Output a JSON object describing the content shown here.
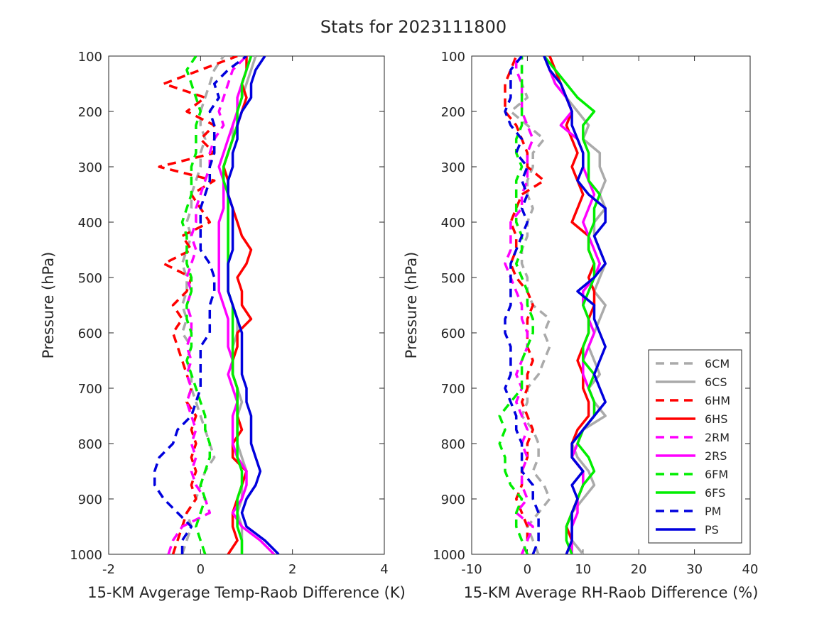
{
  "figure_title": "Stats for 2023111800",
  "chart_data": [
    {
      "type": "line",
      "xlabel": "15-KM Avgerage Temp-Raob Difference (K)",
      "ylabel": "Pressure (hPa)",
      "xlim": [
        -2,
        4
      ],
      "ylim": [
        100,
        1000
      ],
      "y_reversed": true,
      "xticks": [
        "-2",
        "0",
        "2",
        "4"
      ],
      "yticks": [
        "100",
        "200",
        "300",
        "400",
        "500",
        "600",
        "700",
        "800",
        "900",
        "1000"
      ],
      "pressure": [
        1000,
        975,
        950,
        925,
        900,
        875,
        850,
        825,
        800,
        775,
        750,
        725,
        700,
        675,
        650,
        625,
        600,
        575,
        550,
        525,
        500,
        475,
        450,
        425,
        400,
        375,
        350,
        325,
        300,
        275,
        250,
        225,
        200,
        175,
        150,
        125,
        100
      ],
      "series": [
        {
          "name": "6CM",
          "color": "#aaaaaa",
          "dash": true,
          "values": [
            -0.4,
            -0.3,
            -0.2,
            -0.3,
            -0.1,
            0.0,
            0.1,
            0.3,
            0.2,
            0.1,
            0.0,
            -0.1,
            -0.2,
            -0.2,
            -0.3,
            -0.2,
            -0.4,
            -0.3,
            -0.4,
            -0.3,
            -0.3,
            -0.4,
            -0.3,
            -0.2,
            -0.3,
            -0.2,
            -0.2,
            -0.1,
            0.0,
            0.0,
            0.1,
            0.0,
            0.0,
            0.1,
            0.2,
            0.3,
            0.5
          ]
        },
        {
          "name": "6CS",
          "color": "#aaaaaa",
          "dash": false,
          "values": [
            0.9,
            0.9,
            0.9,
            0.8,
            0.9,
            0.9,
            1.0,
            0.9,
            0.8,
            0.8,
            0.8,
            0.9,
            0.8,
            0.7,
            0.7,
            0.7,
            0.8,
            0.8,
            0.7,
            0.6,
            0.6,
            0.6,
            0.6,
            0.6,
            0.6,
            0.6,
            0.6,
            0.6,
            0.5,
            0.6,
            0.7,
            0.7,
            0.8,
            0.9,
            1.0,
            1.1,
            1.2
          ]
        },
        {
          "name": "6HM",
          "color": "#ff0000",
          "dash": true,
          "values": [
            -0.6,
            -0.5,
            -0.4,
            -0.3,
            -0.1,
            -0.2,
            -0.1,
            -0.2,
            -0.1,
            -0.2,
            -0.1,
            -0.3,
            -0.2,
            -0.3,
            -0.4,
            -0.5,
            -0.6,
            -0.4,
            -0.6,
            -0.3,
            -0.2,
            -0.8,
            -0.2,
            -0.4,
            0.2,
            0.0,
            -0.2,
            0.3,
            -0.9,
            0.3,
            0.0,
            0.3,
            -0.3,
            0.1,
            -0.8,
            0.0,
            0.8
          ]
        },
        {
          "name": "6HS",
          "color": "#ff0000",
          "dash": false,
          "values": [
            0.6,
            0.8,
            0.7,
            0.7,
            0.8,
            0.9,
            1.0,
            0.7,
            0.7,
            0.9,
            0.8,
            0.8,
            0.8,
            0.7,
            0.7,
            0.8,
            0.8,
            1.1,
            0.9,
            0.9,
            0.8,
            1.0,
            1.1,
            0.9,
            0.8,
            0.7,
            0.6,
            0.6,
            0.5,
            0.6,
            0.7,
            0.8,
            0.9,
            1.0,
            0.9,
            1.0,
            1.0
          ]
        },
        {
          "name": "2RM",
          "color": "#ff00ff",
          "dash": true,
          "values": [
            -0.7,
            -0.6,
            -0.4,
            0.2,
            0.1,
            -0.1,
            -0.2,
            -0.1,
            -0.2,
            -0.1,
            -0.2,
            -0.3,
            -0.2,
            -0.3,
            -0.2,
            -0.3,
            -0.2,
            -0.2,
            -0.3,
            -0.2,
            -0.3,
            -0.2,
            -0.1,
            -0.2,
            -0.1,
            -0.1,
            0.0,
            0.1,
            0.2,
            0.2,
            0.3,
            0.5,
            0.4,
            0.5,
            0.6,
            0.7,
            1.0
          ]
        },
        {
          "name": "2RS",
          "color": "#ff00ff",
          "dash": false,
          "values": [
            1.6,
            1.3,
            0.9,
            0.7,
            0.9,
            1.0,
            1.0,
            0.8,
            0.7,
            0.7,
            0.7,
            0.8,
            0.7,
            0.6,
            0.7,
            0.6,
            0.6,
            0.6,
            0.5,
            0.4,
            0.4,
            0.4,
            0.4,
            0.4,
            0.4,
            0.5,
            0.5,
            0.5,
            0.4,
            0.5,
            0.6,
            0.7,
            0.8,
            0.8,
            0.9,
            1.0,
            1.1
          ]
        },
        {
          "name": "6FM",
          "color": "#00ee00",
          "dash": true,
          "values": [
            0.1,
            0.0,
            -0.1,
            0.0,
            0.1,
            0.0,
            0.1,
            0.2,
            0.2,
            0.1,
            0.1,
            0.0,
            -0.1,
            -0.2,
            -0.3,
            -0.2,
            -0.2,
            -0.3,
            -0.3,
            -0.2,
            -0.2,
            -0.3,
            -0.3,
            -0.3,
            -0.4,
            -0.3,
            -0.2,
            -0.2,
            -0.2,
            -0.1,
            -0.1,
            -0.1,
            0.0,
            -0.1,
            -0.2,
            -0.3,
            -0.1
          ]
        },
        {
          "name": "6FS",
          "color": "#00ee00",
          "dash": false,
          "values": [
            0.9,
            0.9,
            0.8,
            0.8,
            0.8,
            0.9,
            0.9,
            0.8,
            0.8,
            0.8,
            0.8,
            0.8,
            0.8,
            0.7,
            0.7,
            0.7,
            0.7,
            0.7,
            0.7,
            0.6,
            0.6,
            0.6,
            0.6,
            0.6,
            0.6,
            0.6,
            0.6,
            0.5,
            0.5,
            0.6,
            0.7,
            0.8,
            0.8,
            0.9,
            0.9,
            1.0,
            1.1
          ]
        },
        {
          "name": "PM",
          "color": "#0000dd",
          "dash": true,
          "values": [
            -0.4,
            -0.4,
            -0.2,
            -0.5,
            -0.8,
            -1.0,
            -1.0,
            -0.9,
            -0.6,
            -0.5,
            -0.2,
            -0.1,
            0.0,
            0.0,
            0.0,
            0.0,
            0.2,
            0.2,
            0.2,
            0.3,
            0.3,
            0.2,
            0.0,
            0.0,
            0.0,
            0.0,
            0.1,
            0.2,
            0.2,
            0.3,
            0.3,
            0.3,
            0.2,
            0.4,
            0.3,
            0.6,
            1.0
          ]
        },
        {
          "name": "PS",
          "color": "#0000dd",
          "dash": false,
          "values": [
            1.7,
            1.4,
            1.0,
            0.9,
            1.0,
            1.2,
            1.3,
            1.2,
            1.1,
            1.1,
            1.1,
            1.0,
            1.0,
            0.9,
            0.9,
            0.9,
            0.9,
            0.8,
            0.7,
            0.6,
            0.6,
            0.6,
            0.7,
            0.7,
            0.7,
            0.7,
            0.6,
            0.6,
            0.7,
            0.7,
            0.8,
            0.8,
            0.9,
            1.1,
            1.1,
            1.2,
            1.4
          ]
        }
      ]
    },
    {
      "type": "line",
      "xlabel": "15-KM Average RH-Raob Difference (%)",
      "ylabel": "Pressure (hPa)",
      "xlim": [
        -10,
        40
      ],
      "ylim": [
        100,
        1000
      ],
      "y_reversed": true,
      "xticks": [
        "-10",
        "0",
        "10",
        "20",
        "30",
        "40"
      ],
      "yticks": [
        "100",
        "200",
        "300",
        "400",
        "500",
        "600",
        "700",
        "800",
        "900",
        "1000"
      ],
      "legend_position": "lower-right",
      "pressure": [
        1000,
        975,
        950,
        925,
        900,
        875,
        850,
        825,
        800,
        775,
        750,
        725,
        700,
        675,
        650,
        625,
        600,
        575,
        550,
        525,
        500,
        475,
        450,
        425,
        400,
        375,
        350,
        325,
        300,
        275,
        250,
        225,
        200,
        175,
        150,
        125,
        100
      ],
      "series": [
        {
          "name": "6CM",
          "color": "#aaaaaa",
          "dash": true,
          "values": [
            2,
            1,
            0,
            2,
            4,
            3,
            1,
            2,
            2,
            1,
            -1,
            0,
            0,
            2,
            3,
            4,
            3,
            4,
            1,
            0,
            0,
            -1,
            -1,
            0,
            0,
            1,
            0,
            0,
            1,
            1,
            3,
            0,
            -3,
            0,
            -1,
            -1,
            -1
          ]
        },
        {
          "name": "6CS",
          "color": "#aaaaaa",
          "dash": false,
          "values": [
            10,
            8,
            7,
            8,
            10,
            12,
            11,
            9,
            8,
            10,
            14,
            12,
            11,
            13,
            12,
            11,
            12,
            13,
            14,
            12,
            13,
            14,
            13,
            12,
            12,
            14,
            13,
            14,
            13,
            13,
            10,
            11,
            9,
            7,
            5,
            4,
            3
          ]
        },
        {
          "name": "6HM",
          "color": "#ff0000",
          "dash": true,
          "values": [
            -1,
            0,
            0,
            -1,
            -2,
            -1,
            -1,
            0,
            0,
            1,
            0,
            -1,
            0,
            0,
            1,
            0,
            0,
            0,
            1,
            0,
            -2,
            -3,
            -2,
            -2,
            -3,
            -2,
            -1,
            3,
            0,
            0,
            -1,
            -2,
            -4,
            -4,
            -4,
            -3,
            -2
          ]
        },
        {
          "name": "6HS",
          "color": "#ff0000",
          "dash": false,
          "values": [
            7,
            8,
            7,
            8,
            9,
            10,
            10,
            8,
            8,
            9,
            11,
            11,
            10,
            10,
            9,
            10,
            11,
            11,
            12,
            12,
            11,
            12,
            11,
            11,
            8,
            9,
            10,
            9,
            8,
            9,
            8,
            7,
            8,
            7,
            6,
            5,
            4
          ]
        },
        {
          "name": "2RM",
          "color": "#ff00ff",
          "dash": true,
          "values": [
            -1,
            0,
            1,
            -2,
            0,
            -1,
            -1,
            0,
            -1,
            0,
            -1,
            -2,
            -1,
            -2,
            -1,
            0,
            0,
            -1,
            -1,
            -2,
            -3,
            -4,
            -3,
            -3,
            -3,
            -1,
            -1,
            0,
            0,
            0,
            1,
            0,
            -1,
            -1,
            -1,
            -2,
            -2
          ]
        },
        {
          "name": "2RS",
          "color": "#ff00ff",
          "dash": false,
          "values": [
            8,
            8,
            8,
            9,
            9,
            10,
            10,
            8,
            9,
            10,
            12,
            12,
            11,
            10,
            10,
            11,
            12,
            11,
            10,
            10,
            12,
            13,
            12,
            11,
            10,
            11,
            12,
            11,
            10,
            10,
            9,
            6,
            8,
            7,
            5,
            4,
            3
          ]
        },
        {
          "name": "6FM",
          "color": "#00ee00",
          "dash": true,
          "values": [
            0,
            -1,
            -2,
            -2,
            -1,
            -3,
            -4,
            -4,
            -5,
            -4,
            -5,
            -3,
            -1,
            -1,
            -1,
            0,
            1,
            1,
            0,
            0,
            -1,
            -2,
            -1,
            -1,
            -2,
            -2,
            -2,
            -2,
            -1,
            -2,
            -2,
            -1,
            -1,
            -1,
            -1,
            -1,
            -1
          ]
        },
        {
          "name": "6FS",
          "color": "#00ee00",
          "dash": false,
          "values": [
            8,
            7,
            7,
            8,
            9,
            10,
            12,
            11,
            9,
            10,
            12,
            12,
            11,
            12,
            10,
            10,
            11,
            11,
            10,
            11,
            12,
            12,
            11,
            11,
            12,
            12,
            13,
            11,
            11,
            11,
            10,
            10,
            12,
            9,
            7,
            5,
            3
          ]
        },
        {
          "name": "PM",
          "color": "#0000dd",
          "dash": true,
          "values": [
            1,
            2,
            2,
            2,
            1,
            1,
            -1,
            -1,
            -1,
            -2,
            -2,
            -3,
            -4,
            -3,
            -3,
            -3,
            -4,
            -4,
            -3,
            -3,
            -3,
            -3,
            -2,
            -1,
            0,
            -1,
            0,
            -1,
            0,
            -2,
            -1,
            -3,
            -4,
            -3,
            -3,
            -3,
            -1
          ]
        },
        {
          "name": "PS",
          "color": "#0000dd",
          "dash": false,
          "values": [
            7,
            8,
            8,
            8,
            9,
            8,
            10,
            8,
            8,
            10,
            12,
            14,
            13,
            12,
            13,
            14,
            13,
            12,
            12,
            9,
            12,
            14,
            13,
            12,
            14,
            14,
            11,
            9,
            10,
            10,
            9,
            8,
            8,
            7,
            6,
            4,
            3
          ]
        }
      ]
    }
  ]
}
